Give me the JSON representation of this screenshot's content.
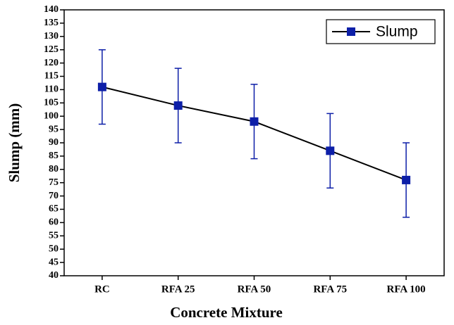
{
  "chart_data": {
    "type": "line",
    "x_label": "Concrete Mixture",
    "y_label": "Slump (mm)",
    "categories": [
      "RC",
      "RFA 25",
      "RFA 50",
      "RFA 75",
      "RFA 100"
    ],
    "series": [
      {
        "name": "Slump",
        "color": "#0d1fa8",
        "line_color": "#000000",
        "values": [
          111,
          104,
          98,
          87,
          76
        ],
        "errors": [
          14,
          14,
          14,
          14,
          14
        ]
      }
    ],
    "ylim": [
      40,
      140
    ],
    "yticks": [
      40,
      45,
      50,
      55,
      60,
      65,
      70,
      75,
      80,
      85,
      90,
      95,
      100,
      105,
      110,
      115,
      120,
      125,
      130,
      135,
      140
    ],
    "grid": false,
    "legend": "upper right"
  }
}
